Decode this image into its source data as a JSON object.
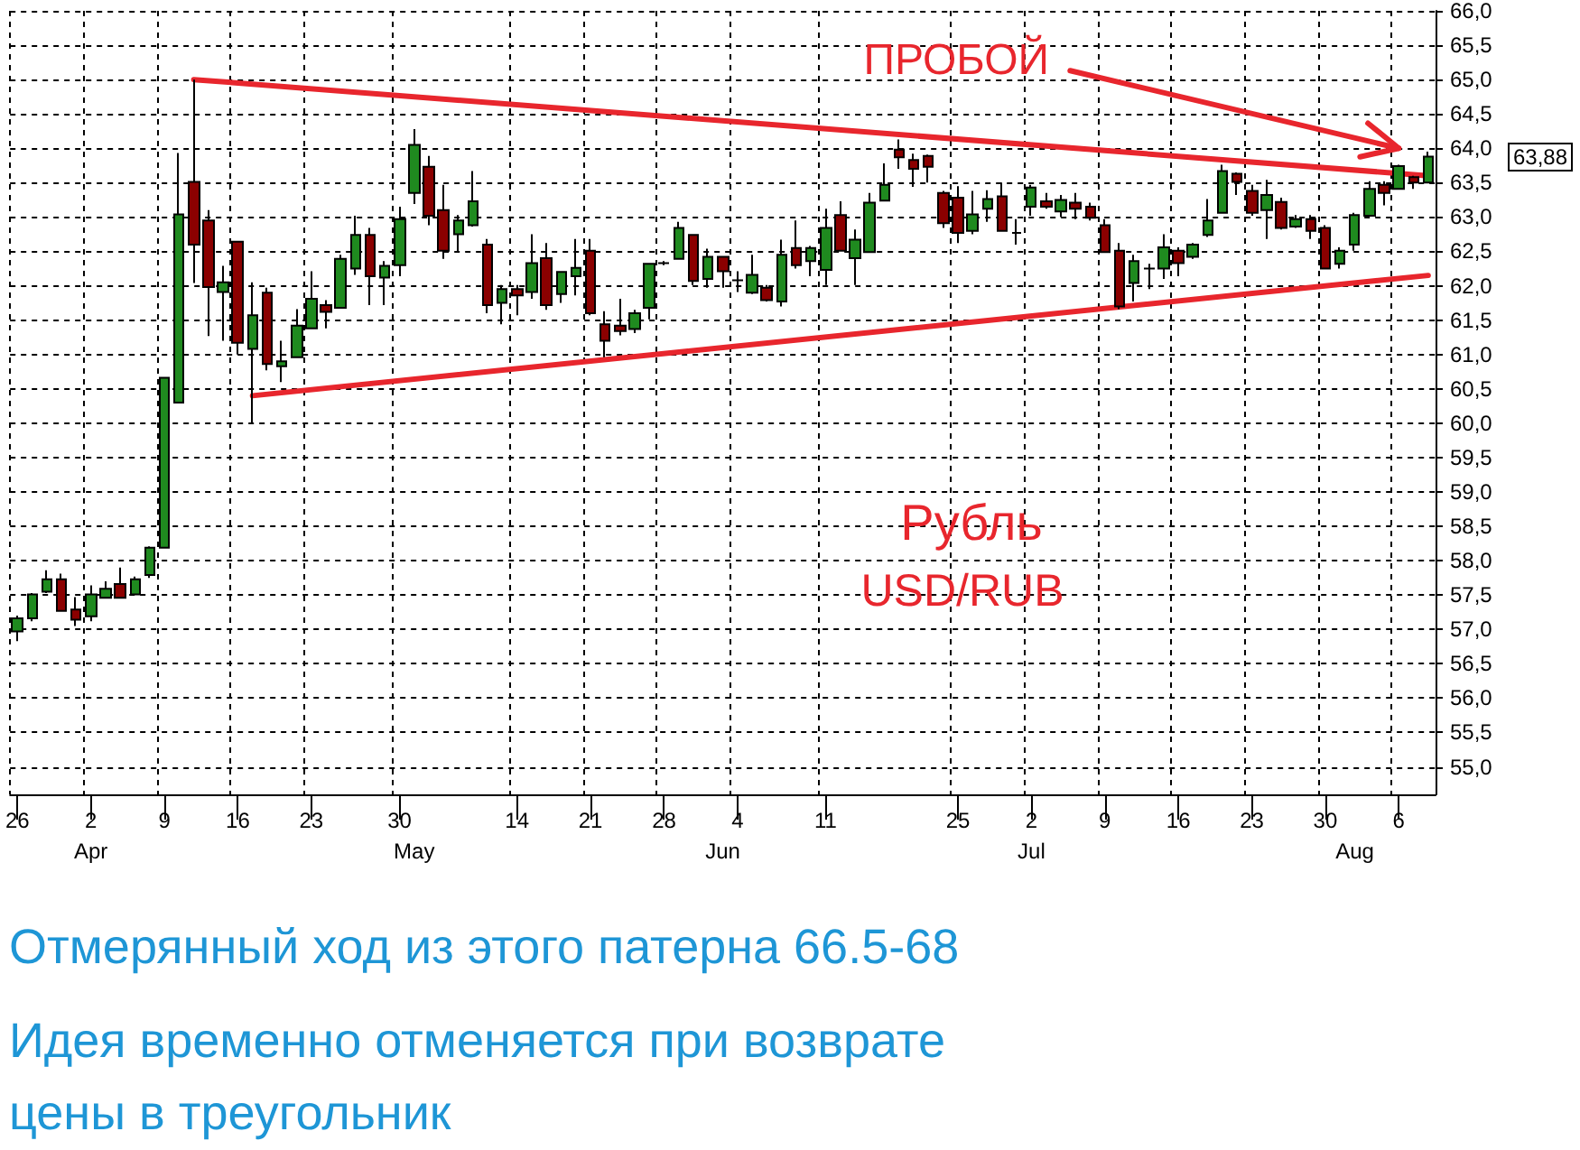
{
  "chart_data": {
    "type": "candlestick",
    "grid": true,
    "categories": [
      "26",
      null,
      null,
      null,
      null,
      "2\nApr",
      null,
      null,
      null,
      null,
      "9",
      null,
      null,
      null,
      null,
      "16",
      null,
      null,
      null,
      null,
      "23",
      null,
      null,
      null,
      null,
      null,
      "30",
      "\nMay",
      null,
      null,
      null,
      null,
      null,
      null,
      "14",
      null,
      null,
      null,
      null,
      "21",
      null,
      null,
      null,
      null,
      "28",
      null,
      null,
      null,
      "\nJun",
      "4",
      null,
      null,
      null,
      null,
      null,
      "11",
      null,
      null,
      null,
      null,
      null,
      null,
      null,
      null,
      "25",
      null,
      null,
      null,
      null,
      "2\nJul",
      null,
      null,
      null,
      null,
      "9",
      null,
      null,
      null,
      null,
      "16",
      null,
      null,
      null,
      null,
      "23",
      null,
      null,
      null,
      null,
      "30",
      null,
      "\nAug",
      null,
      null,
      "6",
      null,
      null
    ],
    "ohlc": [
      [
        56.97,
        57.2,
        56.83,
        57.16
      ],
      [
        57.16,
        57.53,
        57.12,
        57.51
      ],
      [
        57.55,
        57.86,
        57.53,
        57.73
      ],
      [
        57.73,
        57.81,
        57.27,
        57.27
      ],
      [
        57.29,
        57.47,
        57.05,
        57.14
      ],
      [
        57.19,
        57.64,
        57.12,
        57.51
      ],
      [
        57.46,
        57.7,
        57.45,
        57.59
      ],
      [
        57.66,
        57.9,
        57.45,
        57.46
      ],
      [
        57.51,
        57.77,
        57.51,
        57.73
      ],
      [
        57.79,
        58.21,
        57.75,
        58.19
      ],
      [
        58.19,
        60.66,
        58.19,
        60.66
      ],
      [
        60.3,
        63.93,
        60.3,
        63.04
      ],
      [
        63.51,
        65.0,
        62.04,
        62.6
      ],
      [
        62.95,
        63.1,
        61.27,
        61.98
      ],
      [
        61.91,
        62.29,
        61.2,
        62.05
      ],
      [
        62.64,
        62.64,
        61.0,
        61.17
      ],
      [
        61.08,
        62.05,
        60.0,
        61.57
      ],
      [
        61.9,
        61.97,
        60.77,
        60.86
      ],
      [
        60.83,
        61.2,
        60.6,
        60.9
      ],
      [
        60.96,
        61.66,
        60.96,
        61.42
      ],
      [
        61.38,
        62.21,
        61.38,
        61.81
      ],
      [
        61.72,
        61.79,
        61.38,
        61.62
      ],
      [
        61.68,
        62.45,
        61.68,
        62.39
      ],
      [
        62.25,
        63.02,
        62.16,
        62.74
      ],
      [
        62.74,
        62.84,
        61.72,
        62.14
      ],
      [
        62.12,
        62.36,
        61.72,
        62.29
      ],
      [
        62.3,
        63.15,
        62.14,
        62.97
      ],
      [
        63.35,
        64.28,
        63.19,
        64.05
      ],
      [
        63.73,
        63.89,
        62.88,
        63.02
      ],
      [
        63.1,
        63.47,
        62.39,
        62.51
      ],
      [
        62.75,
        63.03,
        62.49,
        62.95
      ],
      [
        62.88,
        63.67,
        62.86,
        63.23
      ],
      [
        62.6,
        62.68,
        61.6,
        61.72
      ],
      [
        61.75,
        62.01,
        61.44,
        61.95
      ],
      [
        61.95,
        62.01,
        61.57,
        61.86
      ],
      [
        61.91,
        62.75,
        61.81,
        62.33
      ],
      [
        62.4,
        62.62,
        61.65,
        61.72
      ],
      [
        61.88,
        62.21,
        61.75,
        62.2
      ],
      [
        62.14,
        62.68,
        61.86,
        62.26
      ],
      [
        62.51,
        62.68,
        61.57,
        61.6
      ],
      [
        61.44,
        61.63,
        60.96,
        61.2
      ],
      [
        61.42,
        61.81,
        61.28,
        61.34
      ],
      [
        61.37,
        61.65,
        61.31,
        61.6
      ],
      [
        61.68,
        62.33,
        61.51,
        62.32
      ],
      [
        62.33,
        62.36,
        62.3,
        62.33
      ],
      [
        62.39,
        62.93,
        62.39,
        62.84
      ],
      [
        62.74,
        62.74,
        62.01,
        62.07
      ],
      [
        62.1,
        62.54,
        61.97,
        62.42
      ],
      [
        62.42,
        62.42,
        61.97,
        62.21
      ],
      [
        62.08,
        62.21,
        61.91,
        62.08
      ],
      [
        61.9,
        62.45,
        61.88,
        62.16
      ],
      [
        61.97,
        62.01,
        61.77,
        61.79
      ],
      [
        61.77,
        62.67,
        61.7,
        62.45
      ],
      [
        62.55,
        62.95,
        62.25,
        62.3
      ],
      [
        62.36,
        62.58,
        62.14,
        62.55
      ],
      [
        62.23,
        63.12,
        62.01,
        62.84
      ],
      [
        63.03,
        63.23,
        62.51,
        62.51
      ],
      [
        62.4,
        62.82,
        62.01,
        62.67
      ],
      [
        62.49,
        63.35,
        62.49,
        63.21
      ],
      [
        63.24,
        63.78,
        63.24,
        63.47
      ],
      [
        63.98,
        64.13,
        63.7,
        63.87
      ],
      [
        63.83,
        63.92,
        63.44,
        63.7
      ],
      [
        63.89,
        63.91,
        63.5,
        63.73
      ],
      [
        63.35,
        63.38,
        62.84,
        62.91
      ],
      [
        63.28,
        63.45,
        62.62,
        62.77
      ],
      [
        62.8,
        63.38,
        62.75,
        63.04
      ],
      [
        63.12,
        63.39,
        62.93,
        63.26
      ],
      [
        63.3,
        63.5,
        62.8,
        62.8
      ],
      [
        62.77,
        62.97,
        62.6,
        62.77
      ],
      [
        63.15,
        63.47,
        63.02,
        63.43
      ],
      [
        63.23,
        63.35,
        63.12,
        63.15
      ],
      [
        63.08,
        63.32,
        63.0,
        63.25
      ],
      [
        63.21,
        63.35,
        62.97,
        63.12
      ],
      [
        63.15,
        63.21,
        62.95,
        62.99
      ],
      [
        62.88,
        62.97,
        62.49,
        62.49
      ],
      [
        62.51,
        62.62,
        61.66,
        61.7
      ],
      [
        62.04,
        62.45,
        61.77,
        62.36
      ],
      [
        62.25,
        62.32,
        61.95,
        62.25
      ],
      [
        62.25,
        62.75,
        62.1,
        62.56
      ],
      [
        62.51,
        62.56,
        62.14,
        62.33
      ],
      [
        62.42,
        62.62,
        62.39,
        62.6
      ],
      [
        62.74,
        63.26,
        62.71,
        62.95
      ],
      [
        63.06,
        63.76,
        63.06,
        63.67
      ],
      [
        63.63,
        63.65,
        63.32,
        63.51
      ],
      [
        63.38,
        63.47,
        63.02,
        63.06
      ],
      [
        63.1,
        63.54,
        62.68,
        63.32
      ],
      [
        63.22,
        63.28,
        62.82,
        62.84
      ],
      [
        62.86,
        63.03,
        62.84,
        62.97
      ],
      [
        62.97,
        63.03,
        62.68,
        62.8
      ],
      [
        62.84,
        62.88,
        62.25,
        62.25
      ],
      [
        62.32,
        62.56,
        62.25,
        62.51
      ],
      [
        62.6,
        63.06,
        62.51,
        63.03
      ],
      [
        63.02,
        63.52,
        63.02,
        63.41
      ],
      [
        63.47,
        63.52,
        63.17,
        63.35
      ],
      [
        63.41,
        63.76,
        63.41,
        63.74
      ],
      [
        63.58,
        63.6,
        63.41,
        63.5
      ],
      [
        63.5,
        63.95,
        63.5,
        63.88
      ]
    ],
    "colors": [
      "#1f8a1f",
      "#1f8a1f",
      "#1f8a1f",
      "#8b0000",
      "#8b0000",
      "#1f8a1f",
      "#1f8a1f",
      "#8b0000",
      "#1f8a1f",
      "#1f8a1f",
      "#1f8a1f",
      "#1f8a1f",
      "#8b0000",
      "#8b0000",
      "#1f8a1f",
      "#8b0000",
      "#1f8a1f",
      "#8b0000",
      "#1f8a1f",
      "#1f8a1f",
      "#1f8a1f",
      "#8b0000",
      "#1f8a1f",
      "#1f8a1f",
      "#8b0000",
      "#1f8a1f",
      "#1f8a1f",
      "#1f8a1f",
      "#8b0000",
      "#8b0000",
      "#1f8a1f",
      "#1f8a1f",
      "#8b0000",
      "#1f8a1f",
      "#8b0000",
      "#1f8a1f",
      "#8b0000",
      "#1f8a1f",
      "#1f8a1f",
      "#8b0000",
      "#8b0000",
      "#8b0000",
      "#1f8a1f",
      "#1f8a1f",
      "#000000",
      "#1f8a1f",
      "#8b0000",
      "#1f8a1f",
      "#8b0000",
      "#000000",
      "#1f8a1f",
      "#8b0000",
      "#1f8a1f",
      "#8b0000",
      "#1f8a1f",
      "#1f8a1f",
      "#8b0000",
      "#1f8a1f",
      "#1f8a1f",
      "#1f8a1f",
      "#8b0000",
      "#8b0000",
      "#8b0000",
      "#8b0000",
      "#8b0000",
      "#1f8a1f",
      "#1f8a1f",
      "#8b0000",
      "#000000",
      "#1f8a1f",
      "#8b0000",
      "#1f8a1f",
      "#8b0000",
      "#8b0000",
      "#8b0000",
      "#8b0000",
      "#1f8a1f",
      "#000000",
      "#1f8a1f",
      "#8b0000",
      "#1f8a1f",
      "#1f8a1f",
      "#1f8a1f",
      "#8b0000",
      "#8b0000",
      "#1f8a1f",
      "#8b0000",
      "#1f8a1f",
      "#8b0000",
      "#8b0000",
      "#1f8a1f",
      "#1f8a1f",
      "#1f8a1f",
      "#8b0000",
      "#1f8a1f",
      "#8b0000",
      "#1f8a1f"
    ],
    "series": [
      {
        "type": "line",
        "color": "#e8262d",
        "values": [
          null,
          null,
          null,
          null,
          null,
          null,
          null,
          null,
          null,
          null,
          null,
          null,
          65.0,
          null,
          null,
          null,
          null,
          null,
          null,
          null,
          null,
          null,
          null,
          null,
          null,
          null,
          null,
          null,
          null,
          null,
          null,
          null,
          null,
          null,
          null,
          null,
          null,
          null,
          null,
          null,
          null,
          null,
          null,
          null,
          null,
          null,
          null,
          null,
          null,
          null,
          null,
          null,
          null,
          null,
          null,
          null,
          null,
          null,
          null,
          null,
          null,
          null,
          null,
          null,
          null,
          null,
          null,
          null,
          null,
          null,
          null,
          null,
          null,
          null,
          null,
          null,
          null,
          null,
          null,
          null,
          null,
          null,
          null,
          null,
          null,
          null,
          null,
          null,
          null,
          null,
          null,
          null,
          null,
          null,
          null,
          null,
          63.6
        ]
      },
      {
        "type": "line",
        "color": "#e8262d",
        "values": [
          null,
          null,
          null,
          null,
          null,
          null,
          null,
          null,
          null,
          null,
          null,
          null,
          null,
          null,
          null,
          null,
          60.4,
          null,
          null,
          null,
          null,
          null,
          null,
          null,
          null,
          null,
          null,
          null,
          null,
          null,
          null,
          null,
          null,
          null,
          null,
          null,
          null,
          null,
          null,
          null,
          null,
          null,
          null,
          null,
          null,
          null,
          null,
          null,
          null,
          null,
          null,
          null,
          null,
          null,
          null,
          null,
          null,
          null,
          null,
          null,
          null,
          null,
          null,
          null,
          null,
          null,
          null,
          null,
          null,
          null,
          null,
          null,
          null,
          null,
          null,
          null,
          null,
          null,
          null,
          null,
          null,
          null,
          null,
          null,
          null,
          null,
          null,
          null,
          null,
          null,
          null,
          null,
          null,
          null,
          null,
          null,
          62.15
        ]
      }
    ],
    "ylim": [
      54.6,
      66.0
    ],
    "yticks": [
      {
        "value": 55,
        "label": "55,0"
      },
      {
        "value": 55.5,
        "label": "55,5"
      },
      {
        "value": 56,
        "label": "56,0"
      },
      {
        "value": 56.5,
        "label": "56,5"
      },
      {
        "value": 57,
        "label": "57,0"
      },
      {
        "value": 57.5,
        "label": "57,5"
      },
      {
        "value": 58,
        "label": "58,0"
      },
      {
        "value": 58.5,
        "label": "58,5"
      },
      {
        "value": 59,
        "label": "59,0"
      },
      {
        "value": 59.5,
        "label": "59,5"
      },
      {
        "value": 60,
        "label": "60,0"
      },
      {
        "value": 60.5,
        "label": "60,5"
      },
      {
        "value": 61,
        "label": "61,0"
      },
      {
        "value": 61.5,
        "label": "61,5"
      },
      {
        "value": 62,
        "label": "62,0"
      },
      {
        "value": 62.5,
        "label": "62,5"
      },
      {
        "value": 63,
        "label": "63,0"
      },
      {
        "value": 63.5,
        "label": "63,5"
      },
      {
        "value": 64,
        "label": "64,0"
      },
      {
        "value": 64.5,
        "label": "64,5"
      },
      {
        "value": 65,
        "label": "65,0"
      },
      {
        "value": 65.5,
        "label": "65,5"
      },
      {
        "value": 66,
        "label": "66,0"
      }
    ],
    "annotations": [
      "ПРОБОЙ",
      "Рубль",
      "USD/RUB",
      "63,88",
      "Отмерянный ход из этого патерна 66.5-68",
      "Идея временно отменяется при возврате",
      "цены в треугольник"
    ]
  }
}
